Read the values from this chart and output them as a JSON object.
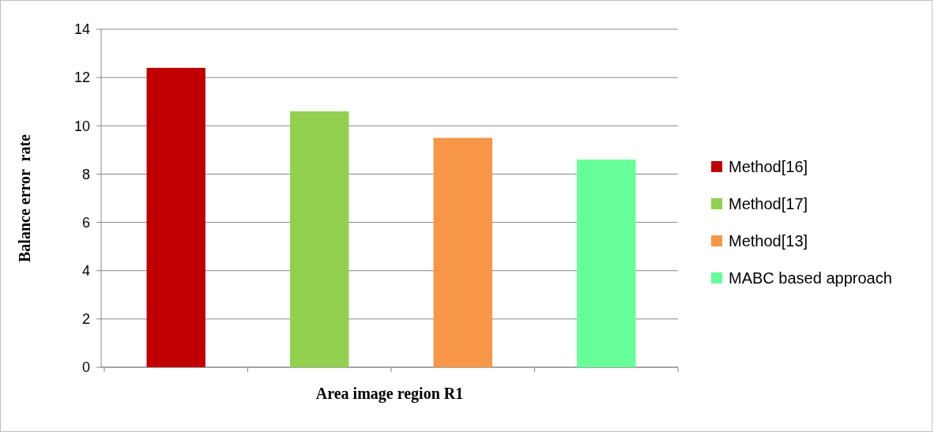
{
  "chart_data": {
    "type": "bar",
    "xlabel": "Area image region R1",
    "ylabel": "Balance error  rate",
    "categories": [
      null,
      null,
      null,
      null
    ],
    "series": [
      {
        "name": "Method[16]",
        "color": "#c00000",
        "values": [
          12.4,
          null,
          null,
          null
        ]
      },
      {
        "name": "Method[17]",
        "color": "#92d050",
        "values": [
          null,
          10.6,
          null,
          null
        ]
      },
      {
        "name": "Method[13]",
        "color": "#f79646",
        "values": [
          null,
          null,
          9.5,
          null
        ]
      },
      {
        "name": "MABC based approach",
        "color": "#66ff99",
        "values": [
          null,
          null,
          null,
          8.6
        ]
      }
    ],
    "ylim": [
      0,
      14
    ],
    "yticks": [
      0,
      2,
      4,
      6,
      8,
      10,
      12,
      14
    ],
    "grid": "y",
    "legend": "right"
  }
}
